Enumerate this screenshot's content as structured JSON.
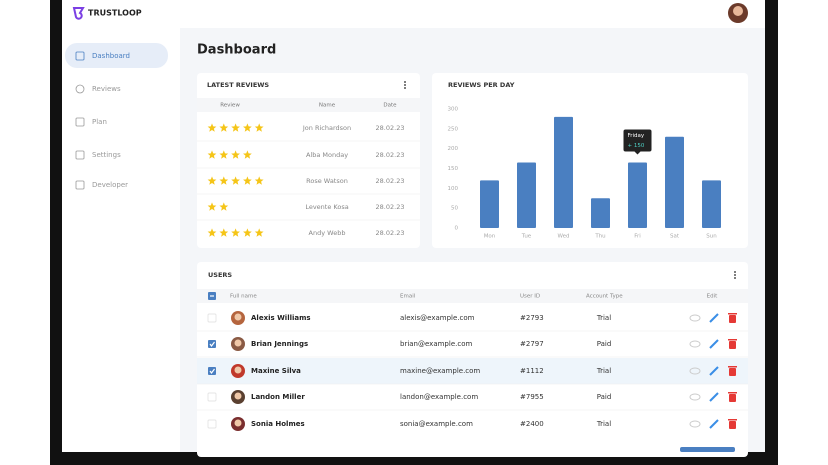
{
  "header": {
    "brand": "TRUSTLOOP"
  },
  "sidebar": {
    "items": [
      "Dashboard",
      "Reviews",
      "Plan",
      "Settings",
      "Developer"
    ]
  },
  "page_title": "Dashboard",
  "latest_reviews": {
    "title": "LATEST REVIEWS",
    "columns": [
      "Review",
      "Name",
      "Date"
    ],
    "rows": [
      {
        "stars": 5,
        "name": "Jon Richardson",
        "date": "28.02.23"
      },
      {
        "stars": 4,
        "name": "Alba Monday",
        "date": "28.02.23"
      },
      {
        "stars": 5,
        "name": "Rose Watson",
        "date": "28.02.23"
      },
      {
        "stars": 2,
        "name": "Levente Kosa",
        "date": "28.02.23"
      },
      {
        "stars": 5,
        "name": "Andy Webb",
        "date": "28.02.23"
      }
    ]
  },
  "chart_data": {
    "type": "bar",
    "title": "REVIEWS PER DAY",
    "categories": [
      "Mon",
      "Tue",
      "Wed",
      "Thu",
      "Fri",
      "Sat",
      "Sun"
    ],
    "values": [
      120,
      165,
      280,
      75,
      165,
      230,
      120
    ],
    "color": "#4a7fc1",
    "ylim": [
      0,
      300
    ],
    "yticks": [
      0,
      50,
      100,
      150,
      200,
      250,
      300
    ],
    "grid": false,
    "tooltip": {
      "title": "Friday",
      "text": "+ 150"
    }
  },
  "users": {
    "title": "USERS",
    "columns": [
      "Full name",
      "Email",
      "User ID",
      "Account Type",
      "Edit"
    ],
    "rows": [
      {
        "name": "Alexis Williams",
        "email": "alexis@example.com",
        "id": "#2793",
        "type": "Trial",
        "checked": false
      },
      {
        "name": "Brian Jennings",
        "email": "brian@example.com",
        "id": "#2797",
        "type": "Paid",
        "checked": true
      },
      {
        "name": "Maxine Silva",
        "email": "maxine@example.com",
        "id": "#1112",
        "type": "Trial",
        "checked": true
      },
      {
        "name": "Landon Miller",
        "email": "landon@example.com",
        "id": "#7955",
        "type": "Paid",
        "checked": false
      },
      {
        "name": "Sonia Holmes",
        "email": "sonia@example.com",
        "id": "#2400",
        "type": "Trial",
        "checked": false
      }
    ]
  }
}
